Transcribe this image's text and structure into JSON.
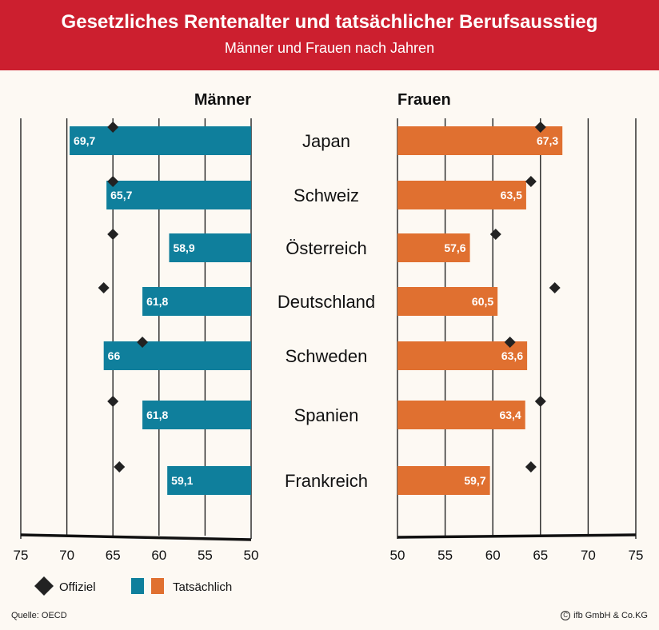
{
  "header": {
    "title": "Gesetzliches Rentenalter und tatsächlicher Berufsausstieg",
    "subtitle": "Männer und Frauen nach Jahren"
  },
  "colors": {
    "header_bg": "#cc1f2f",
    "men_bar": "#0f7f9c",
    "women_bar": "#e07030",
    "marker": "#222222",
    "background": "#fdf9f3"
  },
  "chart_data": {
    "type": "bar",
    "orientation": "horizontal",
    "layout": "butterfly",
    "categories": [
      "Japan",
      "Schweiz",
      "Österreich",
      "Deutschland",
      "Schweden",
      "Spanien",
      "Frankreich"
    ],
    "panels": [
      {
        "title": "Männer",
        "axis_ticks": [
          "75",
          "70",
          "65",
          "60",
          "55",
          "50"
        ],
        "xlim": [
          50,
          75
        ],
        "axis_direction": "reversed",
        "series": [
          {
            "name": "Tatsächlich",
            "type": "bar",
            "values": [
              69.7,
              65.7,
              58.9,
              61.8,
              66,
              61.8,
              59.1
            ],
            "labels": [
              "69,7",
              "65,7",
              "58,9",
              "61,8",
              "66",
              "61,8",
              "59,1"
            ]
          },
          {
            "name": "Offiziel",
            "type": "marker",
            "values": [
              65,
              65,
              65,
              66,
              61.8,
              65,
              64.3
            ]
          }
        ]
      },
      {
        "title": "Frauen",
        "axis_ticks": [
          "50",
          "55",
          "60",
          "65",
          "70",
          "75"
        ],
        "xlim": [
          50,
          75
        ],
        "axis_direction": "normal",
        "series": [
          {
            "name": "Tatsächlich",
            "type": "bar",
            "values": [
              67.3,
              63.5,
              57.6,
              60.5,
              63.6,
              63.4,
              59.7
            ],
            "labels": [
              "67,3",
              "63,5",
              "57,6",
              "60,5",
              "63,6",
              "63,4",
              "59,7"
            ]
          },
          {
            "name": "Offiziel",
            "type": "marker",
            "values": [
              65,
              64,
              60.3,
              66.5,
              61.8,
              65,
              64
            ]
          }
        ]
      }
    ],
    "legend": {
      "placement": "bottom-left",
      "marker_label": "Offiziel",
      "bar_label": "Tatsächlich"
    },
    "grid": true
  },
  "footer": {
    "source": "Quelle: OECD",
    "copyright_symbol": "C",
    "copyright": "ifb GmbH & Co.KG"
  }
}
